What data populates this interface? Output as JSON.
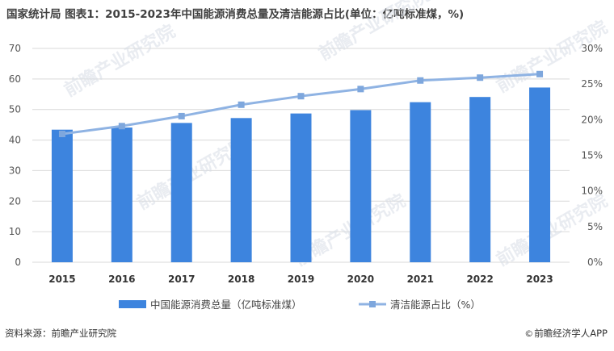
{
  "title": "国家统计局 图表1：2015-2023年中国能源消费总量及清洁能源占比(单位：亿吨标准煤，%)",
  "footer": {
    "source": "资料来源：前瞻产业研究院",
    "brand": "前瞻经济学人APP",
    "brand_icon": "copyright-icon"
  },
  "watermark": "前瞻产业研究院",
  "colors": {
    "bar": "#3d84de",
    "line": "#8fb3e3",
    "marker": "#7ea7dd",
    "grid": "#d9d9d9"
  },
  "chart_data": {
    "type": "bar+line",
    "categories": [
      "2015",
      "2016",
      "2017",
      "2018",
      "2019",
      "2020",
      "2021",
      "2022",
      "2023"
    ],
    "series": [
      {
        "name": "中国能源消费总量（亿吨标准煤）",
        "type": "bar",
        "axis": "left",
        "values": [
          43.4,
          44.1,
          45.6,
          47.2,
          48.7,
          49.8,
          52.4,
          54.1,
          57.2
        ]
      },
      {
        "name": "清洁能源占比（%）",
        "type": "line",
        "axis": "right",
        "values": [
          18.0,
          19.1,
          20.5,
          22.1,
          23.3,
          24.3,
          25.5,
          25.9,
          26.4
        ]
      }
    ],
    "y_left": {
      "min": 0,
      "max": 70,
      "ticks": [
        0,
        10,
        20,
        30,
        40,
        50,
        60,
        70
      ]
    },
    "y_right": {
      "min": 0,
      "max": 30,
      "ticks": [
        "0%",
        "5%",
        "10%",
        "15%",
        "20%",
        "25%",
        "30%"
      ]
    },
    "grid": true,
    "legend": "bottom"
  }
}
